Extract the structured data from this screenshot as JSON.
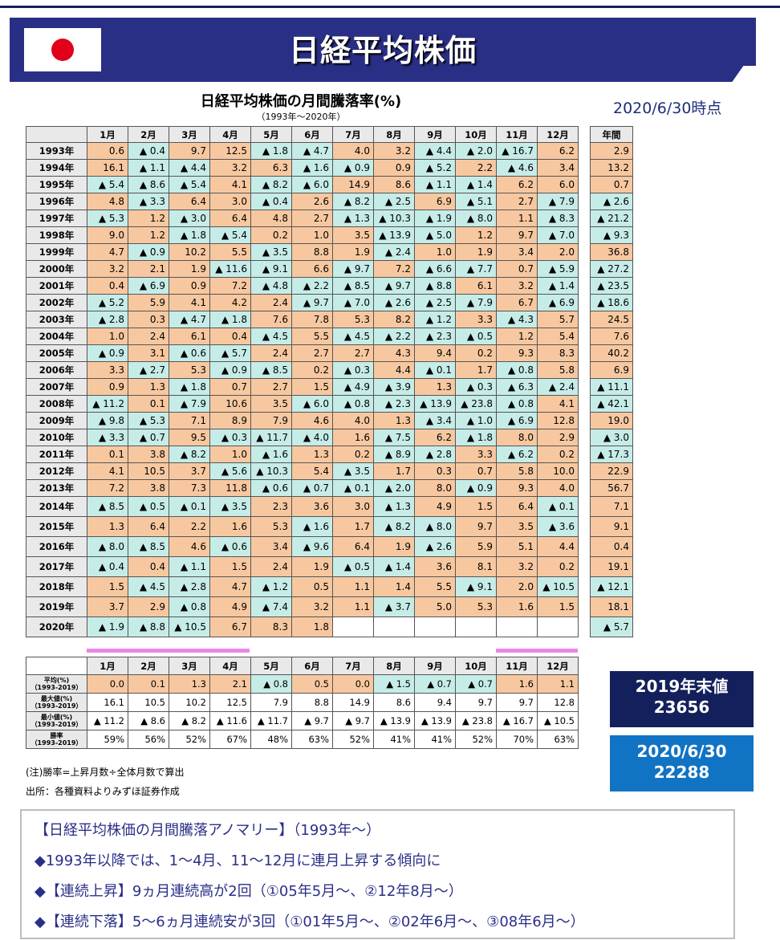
{
  "header": {
    "title": "日経平均株価"
  },
  "chart": {
    "title": "日経平均株価の月間騰落率(%)",
    "subtitle": "（1993年～2020年）",
    "as_of": "2020/6/30時点"
  },
  "columns": [
    "1月",
    "2月",
    "3月",
    "4月",
    "5月",
    "6月",
    "7月",
    "8月",
    "9月",
    "10月",
    "11月",
    "12月"
  ],
  "annual_header": "年間",
  "rows": [
    {
      "year": "1993年",
      "m": [
        "0.6",
        "▲ 0.4",
        "9.7",
        "12.5",
        "▲ 1.8",
        "▲ 4.7",
        "4.0",
        "3.2",
        "▲ 4.4",
        "▲ 2.0",
        "▲ 16.7",
        "6.2"
      ],
      "annual": "2.9"
    },
    {
      "year": "1994年",
      "m": [
        "16.1",
        "▲ 1.1",
        "▲ 4.4",
        "3.2",
        "6.3",
        "▲ 1.6",
        "▲ 0.9",
        "0.9",
        "▲ 5.2",
        "2.2",
        "▲ 4.6",
        "3.4"
      ],
      "annual": "13.2"
    },
    {
      "year": "1995年",
      "m": [
        "▲ 5.4",
        "▲ 8.6",
        "▲ 5.4",
        "4.1",
        "▲ 8.2",
        "▲ 6.0",
        "14.9",
        "8.6",
        "▲ 1.1",
        "▲ 1.4",
        "6.2",
        "6.0"
      ],
      "annual": "0.7"
    },
    {
      "year": "1996年",
      "m": [
        "4.8",
        "▲ 3.3",
        "6.4",
        "3.0",
        "▲ 0.4",
        "2.6",
        "▲ 8.2",
        "▲ 2.5",
        "6.9",
        "▲ 5.1",
        "2.7",
        "▲ 7.9"
      ],
      "annual": "▲ 2.6"
    },
    {
      "year": "1997年",
      "m": [
        "▲ 5.3",
        "1.2",
        "▲ 3.0",
        "6.4",
        "4.8",
        "2.7",
        "▲ 1.3",
        "▲ 10.3",
        "▲ 1.9",
        "▲ 8.0",
        "1.1",
        "▲ 8.3"
      ],
      "annual": "▲ 21.2"
    },
    {
      "year": "1998年",
      "m": [
        "9.0",
        "1.2",
        "▲ 1.8",
        "▲ 5.4",
        "0.2",
        "1.0",
        "3.5",
        "▲ 13.9",
        "▲ 5.0",
        "1.2",
        "9.7",
        "▲ 7.0"
      ],
      "annual": "▲ 9.3"
    },
    {
      "year": "1999年",
      "m": [
        "4.7",
        "▲ 0.9",
        "10.2",
        "5.5",
        "▲ 3.5",
        "8.8",
        "1.9",
        "▲ 2.4",
        "1.0",
        "1.9",
        "3.4",
        "2.0"
      ],
      "annual": "36.8"
    },
    {
      "year": "2000年",
      "m": [
        "3.2",
        "2.1",
        "1.9",
        "▲ 11.6",
        "▲ 9.1",
        "6.6",
        "▲ 9.7",
        "7.2",
        "▲ 6.6",
        "▲ 7.7",
        "0.7",
        "▲ 5.9"
      ],
      "annual": "▲ 27.2"
    },
    {
      "year": "2001年",
      "m": [
        "0.4",
        "▲ 6.9",
        "0.9",
        "7.2",
        "▲ 4.8",
        "▲ 2.2",
        "▲ 8.5",
        "▲ 9.7",
        "▲ 8.8",
        "6.1",
        "3.2",
        "▲ 1.4"
      ],
      "annual": "▲ 23.5"
    },
    {
      "year": "2002年",
      "m": [
        "▲ 5.2",
        "5.9",
        "4.1",
        "4.2",
        "2.4",
        "▲ 9.7",
        "▲ 7.0",
        "▲ 2.6",
        "▲ 2.5",
        "▲ 7.9",
        "6.7",
        "▲ 6.9"
      ],
      "annual": "▲ 18.6"
    },
    {
      "year": "2003年",
      "m": [
        "▲ 2.8",
        "0.3",
        "▲ 4.7",
        "▲ 1.8",
        "7.6",
        "7.8",
        "5.3",
        "8.2",
        "▲ 1.2",
        "3.3",
        "▲ 4.3",
        "5.7"
      ],
      "annual": "24.5"
    },
    {
      "year": "2004年",
      "m": [
        "1.0",
        "2.4",
        "6.1",
        "0.4",
        "▲ 4.5",
        "5.5",
        "▲ 4.5",
        "▲ 2.2",
        "▲ 2.3",
        "▲ 0.5",
        "1.2",
        "5.4"
      ],
      "annual": "7.6"
    },
    {
      "year": "2005年",
      "m": [
        "▲ 0.9",
        "3.1",
        "▲ 0.6",
        "▲ 5.7",
        "2.4",
        "2.7",
        "2.7",
        "4.3",
        "9.4",
        "0.2",
        "9.3",
        "8.3"
      ],
      "annual": "40.2"
    },
    {
      "year": "2006年",
      "m": [
        "3.3",
        "▲ 2.7",
        "5.3",
        "▲ 0.9",
        "▲ 8.5",
        "0.2",
        "▲ 0.3",
        "4.4",
        "▲ 0.1",
        "1.7",
        "▲ 0.8",
        "5.8"
      ],
      "annual": "6.9"
    },
    {
      "year": "2007年",
      "m": [
        "0.9",
        "1.3",
        "▲ 1.8",
        "0.7",
        "2.7",
        "1.5",
        "▲ 4.9",
        "▲ 3.9",
        "1.3",
        "▲ 0.3",
        "▲ 6.3",
        "▲ 2.4"
      ],
      "annual": "▲ 11.1"
    },
    {
      "year": "2008年",
      "m": [
        "▲ 11.2",
        "0.1",
        "▲ 7.9",
        "10.6",
        "3.5",
        "▲ 6.0",
        "▲ 0.8",
        "▲ 2.3",
        "▲ 13.9",
        "▲ 23.8",
        "▲ 0.8",
        "4.1"
      ],
      "annual": "▲ 42.1"
    },
    {
      "year": "2009年",
      "m": [
        "▲ 9.8",
        "▲ 5.3",
        "7.1",
        "8.9",
        "7.9",
        "4.6",
        "4.0",
        "1.3",
        "▲ 3.4",
        "▲ 1.0",
        "▲ 6.9",
        "12.8"
      ],
      "annual": "19.0"
    },
    {
      "year": "2010年",
      "m": [
        "▲ 3.3",
        "▲ 0.7",
        "9.5",
        "▲ 0.3",
        "▲ 11.7",
        "▲ 4.0",
        "1.6",
        "▲ 7.5",
        "6.2",
        "▲ 1.8",
        "8.0",
        "2.9"
      ],
      "annual": "▲ 3.0"
    },
    {
      "year": "2011年",
      "m": [
        "0.1",
        "3.8",
        "▲ 8.2",
        "1.0",
        "▲ 1.6",
        "1.3",
        "0.2",
        "▲ 8.9",
        "▲ 2.8",
        "3.3",
        "▲ 6.2",
        "0.2"
      ],
      "annual": "▲ 17.3"
    },
    {
      "year": "2012年",
      "m": [
        "4.1",
        "10.5",
        "3.7",
        "▲ 5.6",
        "▲ 10.3",
        "5.4",
        "▲ 3.5",
        "1.7",
        "0.3",
        "0.7",
        "5.8",
        "10.0"
      ],
      "annual": "22.9"
    },
    {
      "year": "2013年",
      "m": [
        "7.2",
        "3.8",
        "7.3",
        "11.8",
        "▲ 0.6",
        "▲ 0.7",
        "▲ 0.1",
        "▲ 2.0",
        "8.0",
        "▲ 0.9",
        "9.3",
        "4.0"
      ],
      "annual": "56.7"
    },
    {
      "year": "2014年",
      "m": [
        "▲ 8.5",
        "▲ 0.5",
        "▲ 0.1",
        "▲ 3.5",
        "2.3",
        "3.6",
        "3.0",
        "▲ 1.3",
        "4.9",
        "1.5",
        "6.4",
        "▲ 0.1"
      ],
      "annual": "7.1"
    },
    {
      "year": "2015年",
      "m": [
        "1.3",
        "6.4",
        "2.2",
        "1.6",
        "5.3",
        "▲ 1.6",
        "1.7",
        "▲ 8.2",
        "▲ 8.0",
        "9.7",
        "3.5",
        "▲ 3.6"
      ],
      "annual": "9.1"
    },
    {
      "year": "2016年",
      "m": [
        "▲ 8.0",
        "▲ 8.5",
        "4.6",
        "▲ 0.6",
        "3.4",
        "▲ 9.6",
        "6.4",
        "1.9",
        "▲ 2.6",
        "5.9",
        "5.1",
        "4.4"
      ],
      "annual": "0.4"
    },
    {
      "year": "2017年",
      "m": [
        "▲ 0.4",
        "0.4",
        "▲ 1.1",
        "1.5",
        "2.4",
        "1.9",
        "▲ 0.5",
        "▲ 1.4",
        "3.6",
        "8.1",
        "3.2",
        "0.2"
      ],
      "annual": "19.1"
    },
    {
      "year": "2018年",
      "m": [
        "1.5",
        "▲ 4.5",
        "▲ 2.8",
        "4.7",
        "▲ 1.2",
        "0.5",
        "1.1",
        "1.4",
        "5.5",
        "▲ 9.1",
        "2.0",
        "▲ 10.5"
      ],
      "annual": "▲ 12.1"
    },
    {
      "year": "2019年",
      "m": [
        "3.7",
        "2.9",
        "▲ 0.8",
        "4.9",
        "▲ 7.4",
        "3.2",
        "1.1",
        "▲ 3.7",
        "5.0",
        "5.3",
        "1.6",
        "1.5"
      ],
      "annual": "18.1"
    },
    {
      "year": "2020年",
      "m": [
        "▲ 1.9",
        "▲ 8.8",
        "▲ 10.5",
        "6.7",
        "8.3",
        "1.8",
        "",
        "",
        "",
        "",
        "",
        ""
      ],
      "annual": "▲ 5.7"
    }
  ],
  "stats": [
    {
      "label": "平均(%)",
      "range": "（1993-2019）",
      "v": [
        "0.0",
        "0.1",
        "1.3",
        "2.1",
        "▲ 0.8",
        "0.5",
        "0.0",
        "▲ 1.5",
        "▲ 0.7",
        "▲ 0.7",
        "1.6",
        "1.1"
      ]
    },
    {
      "label": "最大値(%)",
      "range": "（1993-2019）",
      "v": [
        "16.1",
        "10.5",
        "10.2",
        "12.5",
        "7.9",
        "8.8",
        "14.9",
        "8.6",
        "9.4",
        "9.7",
        "9.7",
        "12.8"
      ]
    },
    {
      "label": "最小値(%)",
      "range": "（1993-2019）",
      "v": [
        "▲ 11.2",
        "▲ 8.6",
        "▲ 8.2",
        "▲ 11.6",
        "▲ 11.7",
        "▲ 9.7",
        "▲ 9.7",
        "▲ 13.9",
        "▲ 13.9",
        "▲ 23.8",
        "▲ 16.7",
        "▲ 10.5"
      ]
    },
    {
      "label": "勝率",
      "range": "（1993-2019）",
      "v": [
        "59%",
        "56%",
        "52%",
        "67%",
        "48%",
        "63%",
        "52%",
        "41%",
        "41%",
        "52%",
        "70%",
        "63%"
      ]
    }
  ],
  "notes": {
    "note1": "(注)勝率=上昇月数÷全体月数で算出",
    "note2": "出所：各種資料よりみずほ証券作成"
  },
  "values": {
    "box1": {
      "line1": "2019年末値",
      "line2": "23656",
      "color": "#13205b"
    },
    "box2": {
      "line1": "2020/6/30",
      "line2": "22288",
      "color": "#1173c4"
    }
  },
  "callout": {
    "title": "【日経平均株価の月間騰落アノマリー】（1993年～）",
    "b1": "◆1993年以降では、1～4月、11～12月に連月上昇する傾向に",
    "b2": "◆【連続上昇】9ヵ月連続高が2回（①05年5月～、②12年8月～）",
    "b3": "◆【連続下落】5～6ヵ月連続安が3回（①01年5月～、②02年6月～、③08年6月～）"
  },
  "colors": {
    "positive": "#f7c8a0",
    "negative": "#c6ece8",
    "banner": "#2a2f86",
    "highlight": "#ea88e8"
  }
}
